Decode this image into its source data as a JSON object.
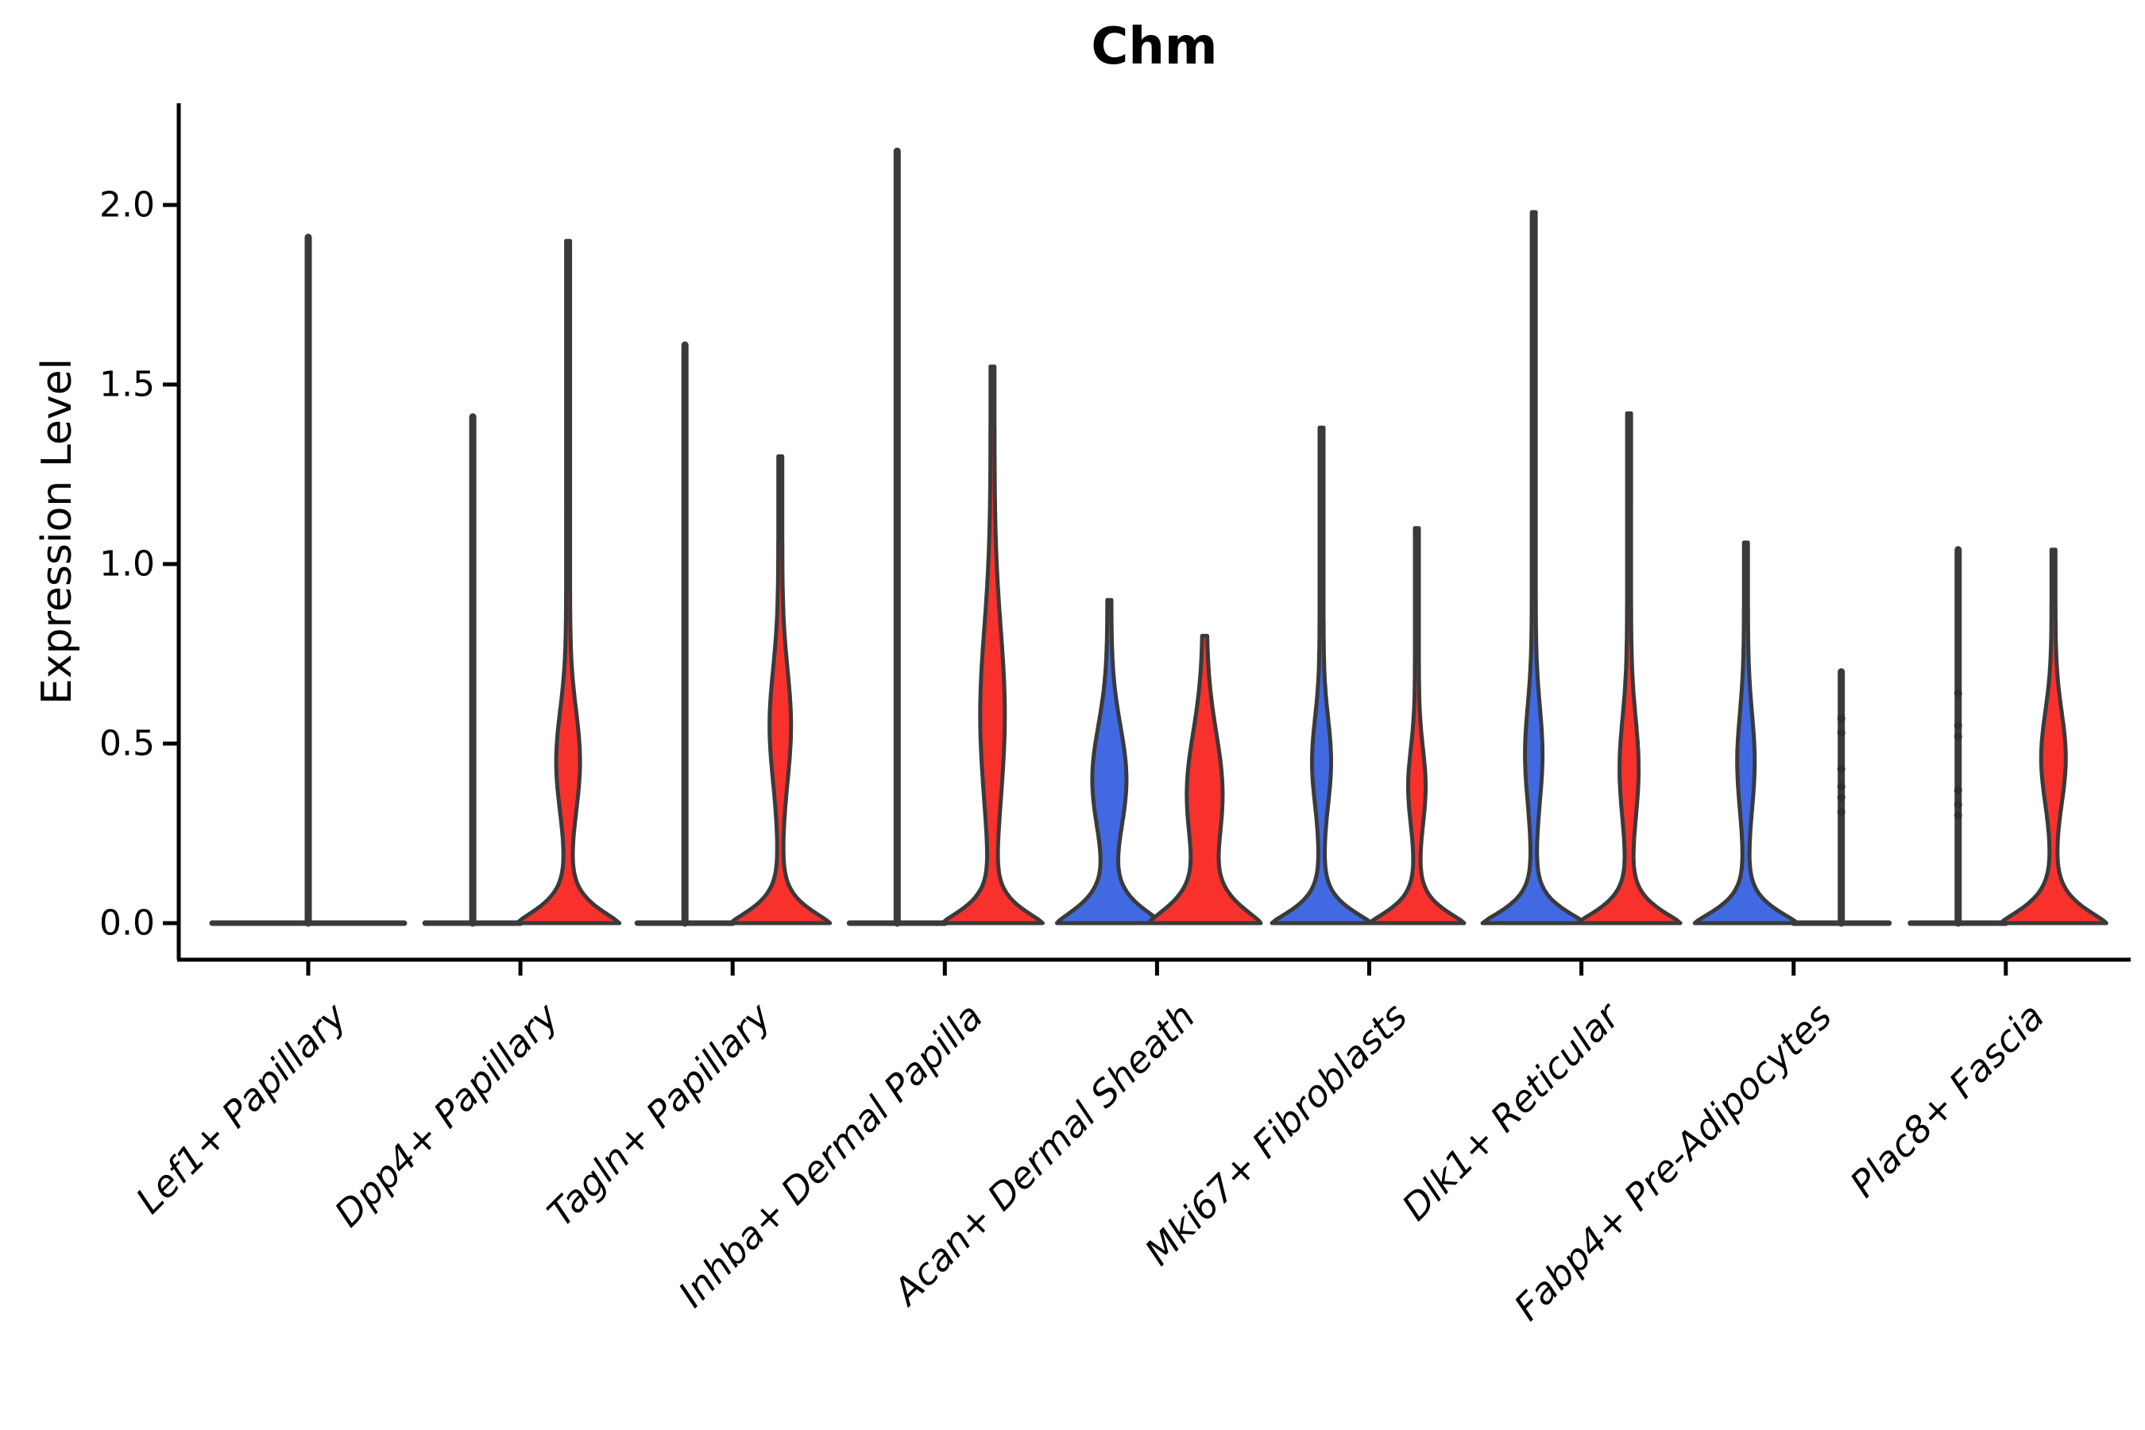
{
  "chart_data": {
    "type": "violin",
    "title": "Chm",
    "ylabel": "Expression Level",
    "ylim": [
      0,
      2.28
    ],
    "grid": false,
    "legend": "none",
    "yticks": [
      "0.0",
      "0.5",
      "1.0",
      "1.5",
      "2.0"
    ],
    "ytick_values": [
      0.0,
      0.5,
      1.0,
      1.5,
      2.0
    ],
    "categories": [
      "Lef1+ Papillary",
      "Dpp4+ Papillary",
      "Tagln+ Papillary",
      "Inhba+ Dermal Papilla",
      "Acan+ Dermal Sheath",
      "Mki67+ Fibroblasts",
      "Dlk1+ Reticular",
      "Fabp4+ Pre-Adipocytes",
      "Plac8+ Fascia"
    ],
    "colors": {
      "group1_fill": "#4169E1",
      "group2_fill": "#F8312D",
      "outline": "#3A3A3A",
      "axis": "#000000"
    },
    "violins": [
      {
        "category": "Lef1+ Papillary",
        "group": "single",
        "style": "flat",
        "flat_half_width": 121,
        "max": 1.91,
        "dots": []
      },
      {
        "category": "Dpp4+ Papillary",
        "group": "group1",
        "style": "flat",
        "flat_half_width": 60,
        "max": 1.41,
        "dots": []
      },
      {
        "category": "Dpp4+ Papillary",
        "group": "group2",
        "style": "body",
        "max": 1.9,
        "lens": {
          "center": 0.45,
          "half_height": 0.2,
          "half_width": 12.5
        },
        "base": {
          "half_width": 62,
          "soft": 0.065
        },
        "dots": []
      },
      {
        "category": "Tagln+ Papillary",
        "group": "group1",
        "style": "flat",
        "flat_half_width": 60,
        "max": 1.61,
        "dots": []
      },
      {
        "category": "Tagln+ Papillary",
        "group": "group2",
        "style": "body",
        "max": 1.3,
        "lens": {
          "center": 0.55,
          "half_height": 0.22,
          "half_width": 11
        },
        "base": {
          "half_width": 60,
          "soft": 0.062
        },
        "dots": []
      },
      {
        "category": "Inhba+ Dermal Papilla",
        "group": "group1",
        "style": "flat",
        "flat_half_width": 60,
        "max": 2.15,
        "dots": []
      },
      {
        "category": "Inhba+ Dermal Papilla",
        "group": "group2",
        "style": "body",
        "max": 1.55,
        "lens": {
          "center": 0.58,
          "half_height": 0.34,
          "half_width": 13
        },
        "base": {
          "half_width": 60,
          "soft": 0.062
        },
        "dots": []
      },
      {
        "category": "Acan+ Dermal Sheath",
        "group": "group1",
        "style": "body",
        "max": 0.9,
        "lens": {
          "center": 0.4,
          "half_height": 0.21,
          "half_width": 19
        },
        "base": {
          "half_width": 63,
          "soft": 0.072
        },
        "dots": []
      },
      {
        "category": "Acan+ Dermal Sheath",
        "group": "group2",
        "style": "body",
        "max": 0.8,
        "lens": {
          "center": 0.36,
          "half_height": 0.24,
          "half_width": 20
        },
        "base": {
          "half_width": 66,
          "soft": 0.08
        },
        "dots": []
      },
      {
        "category": "Mki67+ Fibroblasts",
        "group": "group1",
        "style": "body",
        "max": 1.38,
        "lens": {
          "center": 0.45,
          "half_height": 0.17,
          "half_width": 9.5
        },
        "base": {
          "half_width": 60,
          "soft": 0.06
        },
        "dots": []
      },
      {
        "category": "Mki67+ Fibroblasts",
        "group": "group2",
        "style": "body",
        "max": 1.1,
        "lens": {
          "center": 0.38,
          "half_height": 0.15,
          "half_width": 8.5
        },
        "base": {
          "half_width": 57,
          "soft": 0.058
        },
        "dots": []
      },
      {
        "category": "Dlk1+ Reticular",
        "group": "group1",
        "style": "body",
        "max": 1.98,
        "lens": {
          "center": 0.47,
          "half_height": 0.19,
          "half_width": 8.5
        },
        "base": {
          "half_width": 62,
          "soft": 0.06
        },
        "dots": []
      },
      {
        "category": "Dlk1+ Reticular",
        "group": "group2",
        "style": "body",
        "max": 1.42,
        "lens": {
          "center": 0.43,
          "half_height": 0.2,
          "half_width": 9.5
        },
        "base": {
          "half_width": 62,
          "soft": 0.062
        },
        "dots": []
      },
      {
        "category": "Fabp4+ Pre-Adipocytes",
        "group": "group1",
        "style": "body",
        "max": 1.06,
        "lens": {
          "center": 0.45,
          "half_height": 0.19,
          "half_width": 8.5
        },
        "base": {
          "half_width": 62,
          "soft": 0.06
        },
        "dots": []
      },
      {
        "category": "Fabp4+ Pre-Adipocytes",
        "group": "group2",
        "style": "flat",
        "flat_half_width": 60,
        "max": 0.7,
        "dots": [
          0.57,
          0.53,
          0.43,
          0.38,
          0.35,
          0.31
        ]
      },
      {
        "category": "Plac8+ Fascia",
        "group": "group1",
        "style": "flat",
        "flat_half_width": 60,
        "max": 1.04,
        "dots": [
          0.64,
          0.55,
          0.52,
          0.37,
          0.33,
          0.3
        ]
      },
      {
        "category": "Plac8+ Fascia",
        "group": "group2",
        "style": "body",
        "max": 1.04,
        "lens": {
          "center": 0.46,
          "half_height": 0.18,
          "half_width": 13
        },
        "base": {
          "half_width": 64,
          "soft": 0.066
        },
        "dots": []
      }
    ]
  }
}
